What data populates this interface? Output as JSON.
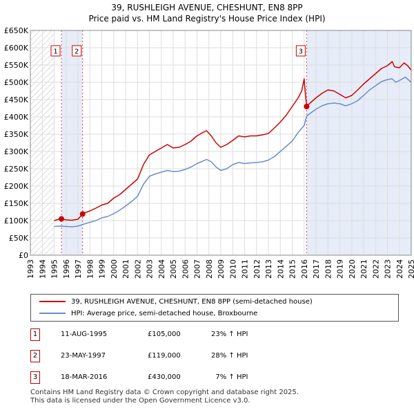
{
  "header": {
    "title": "39, RUSHLEIGH AVENUE, CHESHUNT, EN8 8PP",
    "subtitle": "Price paid vs. HM Land Registry's House Price Index (HPI)"
  },
  "colors": {
    "property_line": "#cc0000",
    "hpi_line": "#6a8fc8",
    "hatch": "#bbbbbb",
    "highlight": "#e6ecf8",
    "grid": "#dddddd",
    "marker_border": "#cc0000"
  },
  "chart_data": {
    "type": "line",
    "title": "Price paid vs. HM Land Registry's House Price Index (HPI)",
    "xlabel": "",
    "ylabel": "",
    "xlim": [
      1993,
      2025
    ],
    "ylim": [
      0,
      650000
    ],
    "y_ticks": [
      0,
      50000,
      100000,
      150000,
      200000,
      250000,
      300000,
      350000,
      400000,
      450000,
      500000,
      550000,
      600000,
      650000
    ],
    "y_tick_labels": [
      "£0",
      "£50K",
      "£100K",
      "£150K",
      "£200K",
      "£250K",
      "£300K",
      "£350K",
      "£400K",
      "£450K",
      "£500K",
      "£550K",
      "£600K",
      "£650K"
    ],
    "x_ticks": [
      1993,
      1994,
      1995,
      1996,
      1997,
      1998,
      1999,
      2000,
      2001,
      2002,
      2003,
      2004,
      2005,
      2006,
      2007,
      2008,
      2009,
      2010,
      2011,
      2012,
      2013,
      2014,
      2015,
      2016,
      2017,
      2018,
      2019,
      2020,
      2021,
      2022,
      2023,
      2024,
      2025
    ],
    "hatched_before": 1995.0,
    "series": [
      {
        "name": "39, RUSHLEIGH AVENUE, CHESHUNT, EN8 8PP (semi-detached house)",
        "color": "#cc0000",
        "points": [
          [
            1995.0,
            100000
          ],
          [
            1995.3,
            103000
          ],
          [
            1995.61,
            105000
          ],
          [
            1996.0,
            102000
          ],
          [
            1996.5,
            101000
          ],
          [
            1997.0,
            104000
          ],
          [
            1997.39,
            119000
          ],
          [
            1997.6,
            123000
          ],
          [
            1998.0,
            128000
          ],
          [
            1998.5,
            136000
          ],
          [
            1999.0,
            145000
          ],
          [
            1999.5,
            150000
          ],
          [
            2000.0,
            165000
          ],
          [
            2000.5,
            175000
          ],
          [
            2001.0,
            190000
          ],
          [
            2001.5,
            205000
          ],
          [
            2002.0,
            220000
          ],
          [
            2002.5,
            262000
          ],
          [
            2003.0,
            290000
          ],
          [
            2003.5,
            300000
          ],
          [
            2004.0,
            310000
          ],
          [
            2004.5,
            320000
          ],
          [
            2005.0,
            310000
          ],
          [
            2005.5,
            312000
          ],
          [
            2006.0,
            320000
          ],
          [
            2006.5,
            330000
          ],
          [
            2007.0,
            345000
          ],
          [
            2007.5,
            355000
          ],
          [
            2007.8,
            360000
          ],
          [
            2008.2,
            345000
          ],
          [
            2008.6,
            325000
          ],
          [
            2009.0,
            312000
          ],
          [
            2009.5,
            320000
          ],
          [
            2010.0,
            332000
          ],
          [
            2010.5,
            345000
          ],
          [
            2011.0,
            342000
          ],
          [
            2011.5,
            345000
          ],
          [
            2012.0,
            345000
          ],
          [
            2012.5,
            348000
          ],
          [
            2013.0,
            352000
          ],
          [
            2013.5,
            368000
          ],
          [
            2014.0,
            385000
          ],
          [
            2014.5,
            405000
          ],
          [
            2015.0,
            430000
          ],
          [
            2015.5,
            455000
          ],
          [
            2015.8,
            475000
          ],
          [
            2016.0,
            510000
          ],
          [
            2016.1,
            470000
          ],
          [
            2016.21,
            430000
          ],
          [
            2016.5,
            440000
          ],
          [
            2017.0,
            455000
          ],
          [
            2017.5,
            468000
          ],
          [
            2018.0,
            478000
          ],
          [
            2018.5,
            475000
          ],
          [
            2019.0,
            465000
          ],
          [
            2019.5,
            455000
          ],
          [
            2020.0,
            462000
          ],
          [
            2020.5,
            478000
          ],
          [
            2021.0,
            495000
          ],
          [
            2021.5,
            510000
          ],
          [
            2022.0,
            525000
          ],
          [
            2022.5,
            540000
          ],
          [
            2023.0,
            548000
          ],
          [
            2023.4,
            560000
          ],
          [
            2023.6,
            545000
          ],
          [
            2024.0,
            542000
          ],
          [
            2024.4,
            556000
          ],
          [
            2024.7,
            548000
          ],
          [
            2025.0,
            535000
          ]
        ]
      },
      {
        "name": "HPI: Average price, semi-detached house, Broxbourne",
        "color": "#6a8fc8",
        "points": [
          [
            1995.0,
            83000
          ],
          [
            1995.5,
            84000
          ],
          [
            1996.0,
            83000
          ],
          [
            1996.5,
            82000
          ],
          [
            1997.0,
            84000
          ],
          [
            1997.5,
            90000
          ],
          [
            1998.0,
            95000
          ],
          [
            1998.5,
            100000
          ],
          [
            1999.0,
            108000
          ],
          [
            1999.5,
            112000
          ],
          [
            2000.0,
            120000
          ],
          [
            2000.5,
            130000
          ],
          [
            2001.0,
            142000
          ],
          [
            2001.5,
            155000
          ],
          [
            2002.0,
            170000
          ],
          [
            2002.5,
            205000
          ],
          [
            2003.0,
            228000
          ],
          [
            2003.5,
            235000
          ],
          [
            2004.0,
            240000
          ],
          [
            2004.5,
            245000
          ],
          [
            2005.0,
            242000
          ],
          [
            2005.5,
            243000
          ],
          [
            2006.0,
            248000
          ],
          [
            2006.5,
            255000
          ],
          [
            2007.0,
            265000
          ],
          [
            2007.5,
            272000
          ],
          [
            2007.8,
            277000
          ],
          [
            2008.2,
            270000
          ],
          [
            2008.6,
            255000
          ],
          [
            2009.0,
            245000
          ],
          [
            2009.5,
            250000
          ],
          [
            2010.0,
            262000
          ],
          [
            2010.5,
            268000
          ],
          [
            2011.0,
            265000
          ],
          [
            2011.5,
            267000
          ],
          [
            2012.0,
            268000
          ],
          [
            2012.5,
            270000
          ],
          [
            2013.0,
            275000
          ],
          [
            2013.5,
            285000
          ],
          [
            2014.0,
            300000
          ],
          [
            2014.5,
            315000
          ],
          [
            2015.0,
            330000
          ],
          [
            2015.5,
            355000
          ],
          [
            2016.0,
            375000
          ],
          [
            2016.21,
            402000
          ],
          [
            2016.5,
            410000
          ],
          [
            2017.0,
            422000
          ],
          [
            2017.5,
            432000
          ],
          [
            2018.0,
            438000
          ],
          [
            2018.5,
            440000
          ],
          [
            2019.0,
            438000
          ],
          [
            2019.5,
            432000
          ],
          [
            2020.0,
            438000
          ],
          [
            2020.5,
            447000
          ],
          [
            2021.0,
            462000
          ],
          [
            2021.5,
            478000
          ],
          [
            2022.0,
            490000
          ],
          [
            2022.5,
            502000
          ],
          [
            2023.0,
            508000
          ],
          [
            2023.4,
            510000
          ],
          [
            2023.7,
            500000
          ],
          [
            2024.0,
            505000
          ],
          [
            2024.5,
            515000
          ],
          [
            2025.0,
            500000
          ]
        ]
      }
    ],
    "events": [
      {
        "label": "1",
        "year": 1995.61,
        "price": 105000
      },
      {
        "label": "2",
        "year": 1997.39,
        "price": 119000
      },
      {
        "label": "3",
        "year": 2016.21,
        "price": 430000
      }
    ],
    "highlight_spans": [
      [
        1995.61,
        1997.39
      ],
      [
        2016.21,
        2025.0
      ]
    ],
    "legend": [
      "39, RUSHLEIGH AVENUE, CHESHUNT, EN8 8PP (semi-detached house)",
      "HPI: Average price, semi-detached house, Broxbourne"
    ]
  },
  "transactions": [
    {
      "num": "1",
      "date": "11-AUG-1995",
      "price": "£105,000",
      "hpi": "23% ↑ HPI"
    },
    {
      "num": "2",
      "date": "23-MAY-1997",
      "price": "£119,000",
      "hpi": "28% ↑ HPI"
    },
    {
      "num": "3",
      "date": "18-MAR-2016",
      "price": "£430,000",
      "hpi": "  7% ↑ HPI"
    }
  ],
  "footer": {
    "line1": "Contains HM Land Registry data © Crown copyright and database right 2025.",
    "line2": "This data is licensed under the Open Government Licence v3.0."
  }
}
